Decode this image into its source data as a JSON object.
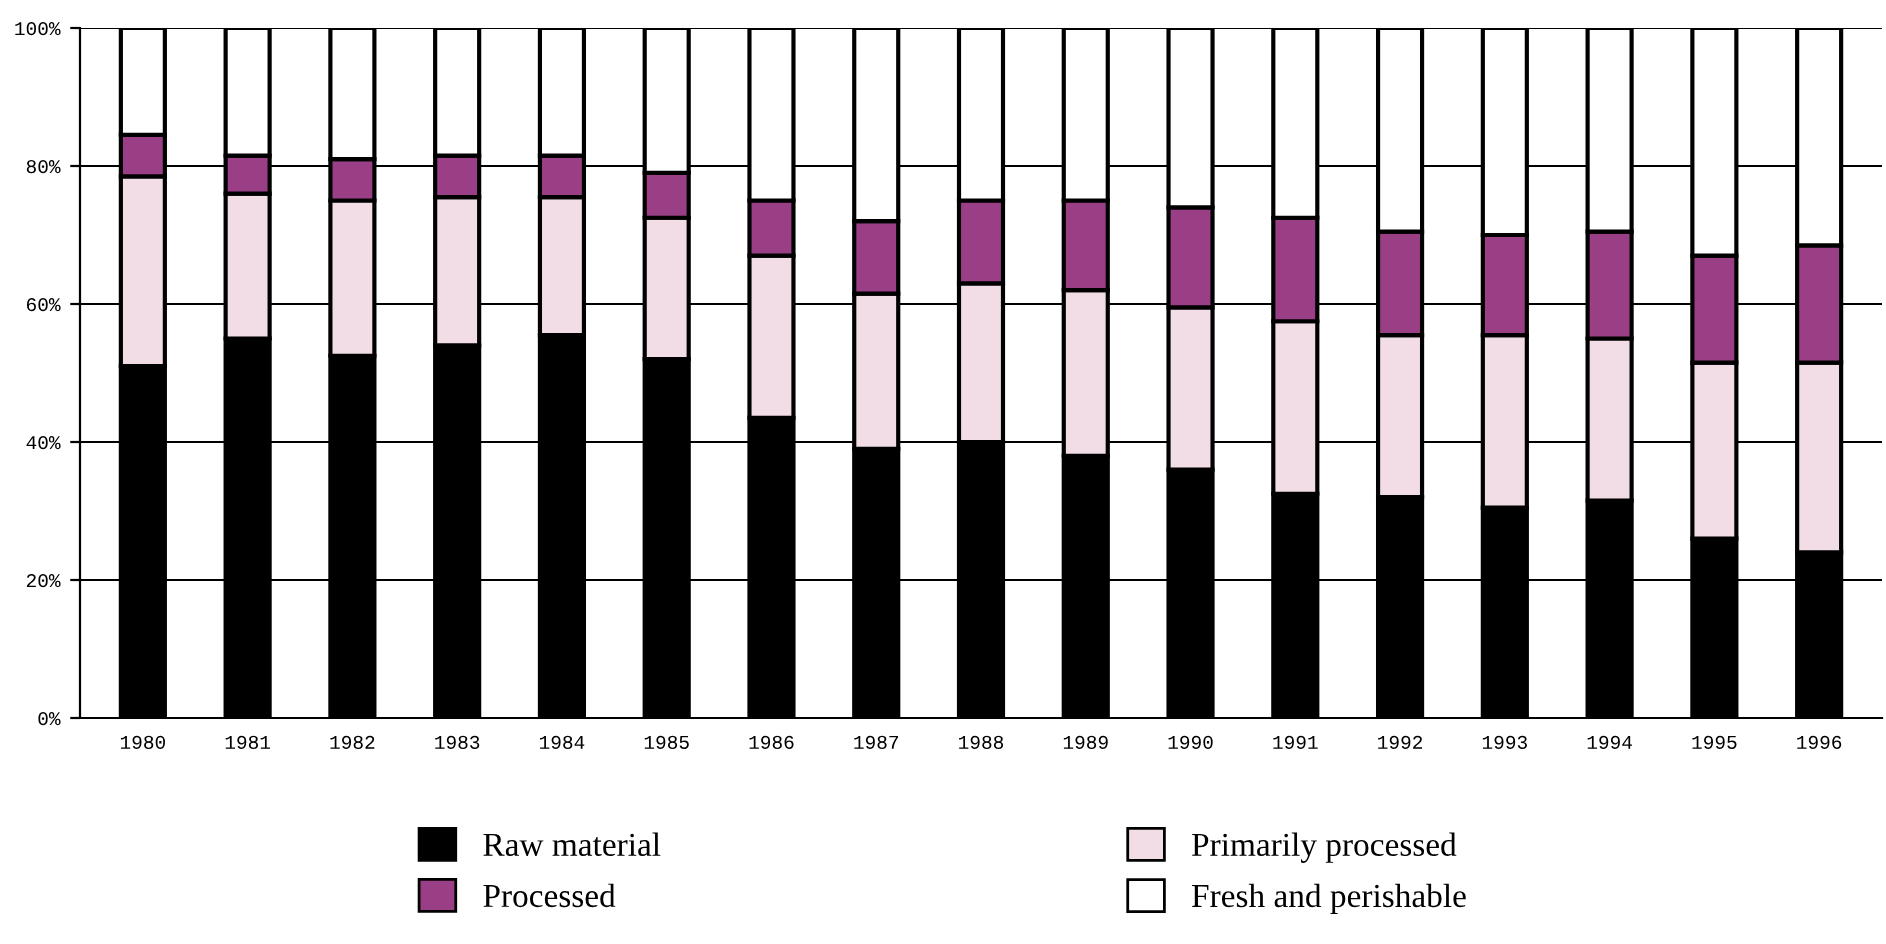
{
  "chart_data": {
    "type": "bar",
    "stacked": true,
    "categories": [
      "1980",
      "1981",
      "1982",
      "1983",
      "1984",
      "1985",
      "1986",
      "1987",
      "1988",
      "1989",
      "1990",
      "1991",
      "1992",
      "1993",
      "1994",
      "1995",
      "1996"
    ],
    "series": [
      {
        "name": "Raw material",
        "color": "#000000",
        "values": [
          51,
          55,
          52.5,
          54,
          55.5,
          52,
          43.5,
          39,
          40,
          38,
          36,
          32.5,
          32,
          30.5,
          31.5,
          26,
          24
        ]
      },
      {
        "name": "Primarily processed",
        "color": "#f2dce6",
        "values": [
          27.5,
          21,
          22.5,
          21.5,
          20,
          20.5,
          23.5,
          22.5,
          23,
          24,
          23.5,
          25,
          23.5,
          25,
          23.5,
          25.5,
          27.5
        ]
      },
      {
        "name": "Processed",
        "color": "#9a3f86",
        "values": [
          6,
          5.5,
          6,
          6,
          6,
          6.5,
          8,
          10.5,
          12,
          13,
          14.5,
          15,
          15,
          14.5,
          15.5,
          15.5,
          17
        ]
      },
      {
        "name": "Fresh and perishable",
        "color": "#ffffff",
        "values": [
          15.5,
          18.5,
          19,
          18.5,
          18.5,
          21,
          25,
          28,
          25,
          25,
          26,
          27.5,
          29.5,
          30,
          29.5,
          33,
          31.5
        ]
      }
    ],
    "ylim": [
      0,
      100
    ],
    "yticks": [
      {
        "value": 0,
        "label": "0%"
      },
      {
        "value": 20,
        "label": "20%"
      },
      {
        "value": 40,
        "label": "40%"
      },
      {
        "value": 60,
        "label": "60%"
      },
      {
        "value": 80,
        "label": "80%"
      },
      {
        "value": 100,
        "label": "100%"
      }
    ],
    "grid": "y",
    "legend": "bottom"
  }
}
